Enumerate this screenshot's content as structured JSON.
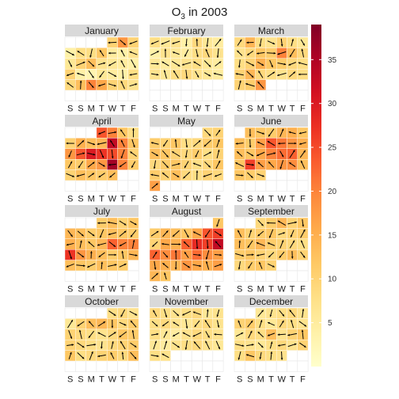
{
  "chart_data": {
    "type": "heatmap",
    "title_main": "O",
    "title_sub": "3",
    "title_rest": " in 2003",
    "year": 2003,
    "weekday_labels": [
      "S",
      "S",
      "M",
      "T",
      "W",
      "T",
      "F"
    ],
    "months": [
      "January",
      "February",
      "March",
      "April",
      "May",
      "June",
      "July",
      "August",
      "September",
      "October",
      "November",
      "December"
    ],
    "colorbar": {
      "min": 0,
      "max": 39,
      "ticks": [
        5,
        10,
        15,
        20,
        25,
        30,
        35
      ]
    },
    "palette": [
      "#ffffcc",
      "#fff1a8",
      "#fee087",
      "#fec965",
      "#feab4b",
      "#fd893c",
      "#fa5c2e",
      "#ec3023",
      "#d31121",
      "#af0225",
      "#800026"
    ],
    "values": {
      "January": [
        10,
        18,
        10,
        4,
        8,
        8,
        12,
        5,
        4,
        7,
        6,
        10,
        13,
        7,
        6,
        5,
        4,
        10,
        4,
        3,
        6,
        5,
        4,
        8,
        9,
        13,
        20,
        16,
        10,
        9,
        7
      ],
      "February": [
        8,
        6,
        7,
        4,
        9,
        6,
        5,
        4,
        7,
        6,
        5,
        8,
        9,
        7,
        6,
        5,
        6,
        7,
        8,
        6,
        5,
        7,
        6,
        8,
        9,
        7,
        6,
        5
      ],
      "March": [
        9,
        14,
        8,
        7,
        10,
        8,
        6,
        7,
        9,
        12,
        11,
        20,
        13,
        9,
        8,
        10,
        15,
        12,
        11,
        9,
        8,
        10,
        14,
        9,
        8,
        7,
        9,
        8,
        10,
        11,
        18
      ],
      "April": [
        24,
        20,
        12,
        8,
        10,
        15,
        13,
        14,
        33,
        20,
        12,
        18,
        24,
        30,
        27,
        25,
        20,
        10,
        12,
        11,
        16,
        18,
        36,
        20,
        11,
        10,
        13,
        12,
        11,
        13
      ],
      "May": [
        9,
        10,
        11,
        10,
        12,
        8,
        9,
        11,
        12,
        13,
        12,
        10,
        9,
        11,
        8,
        10,
        9,
        11,
        12,
        10,
        8,
        9,
        12,
        11,
        10,
        13,
        9,
        8,
        10,
        9,
        17
      ],
      "June": [
        13,
        12,
        11,
        14,
        15,
        12,
        13,
        11,
        17,
        24,
        21,
        18,
        15,
        13,
        12,
        16,
        20,
        22,
        23,
        14,
        12,
        26,
        17,
        16,
        18,
        19,
        13,
        12,
        11,
        10
      ],
      "July": [
        11,
        13,
        10,
        12,
        14,
        13,
        11,
        12,
        13,
        12,
        11,
        15,
        13,
        12,
        14,
        23,
        20,
        20,
        27,
        18,
        15,
        13,
        11,
        12,
        14,
        13,
        12,
        11,
        13,
        12,
        11
      ],
      "August": [
        12,
        11,
        14,
        13,
        12,
        16,
        24,
        26,
        10,
        16,
        15,
        23,
        28,
        26,
        33,
        23,
        19,
        21,
        17,
        22,
        19,
        17,
        16,
        15,
        14,
        18,
        16,
        15,
        17,
        14,
        12
      ],
      "September": [
        9,
        11,
        14,
        10,
        12,
        13,
        10,
        11,
        12,
        9,
        10,
        11,
        13,
        12,
        14,
        11,
        10,
        9,
        8,
        11,
        12,
        10,
        9,
        11,
        13,
        10,
        9,
        11,
        12,
        10
      ],
      "October": [
        8,
        9,
        7,
        6,
        10,
        13,
        14,
        12,
        9,
        11,
        10,
        9,
        8,
        7,
        9,
        12,
        11,
        10,
        9,
        8,
        7,
        9,
        10,
        11,
        12,
        8,
        9,
        10,
        11,
        9,
        13
      ],
      "November": [
        9,
        8,
        7,
        8,
        9,
        6,
        7,
        8,
        9,
        7,
        6,
        8,
        9,
        7,
        8,
        6,
        5,
        7,
        9,
        8,
        7,
        6,
        5,
        7,
        8,
        9,
        7,
        6,
        8,
        7
      ],
      "December": [
        6,
        7,
        8,
        9,
        7,
        10,
        11,
        8,
        6,
        9,
        8,
        7,
        6,
        9,
        8,
        13,
        7,
        10,
        12,
        8,
        7,
        6,
        8,
        9,
        7,
        10,
        8,
        12,
        9,
        8,
        7
      ]
    }
  }
}
